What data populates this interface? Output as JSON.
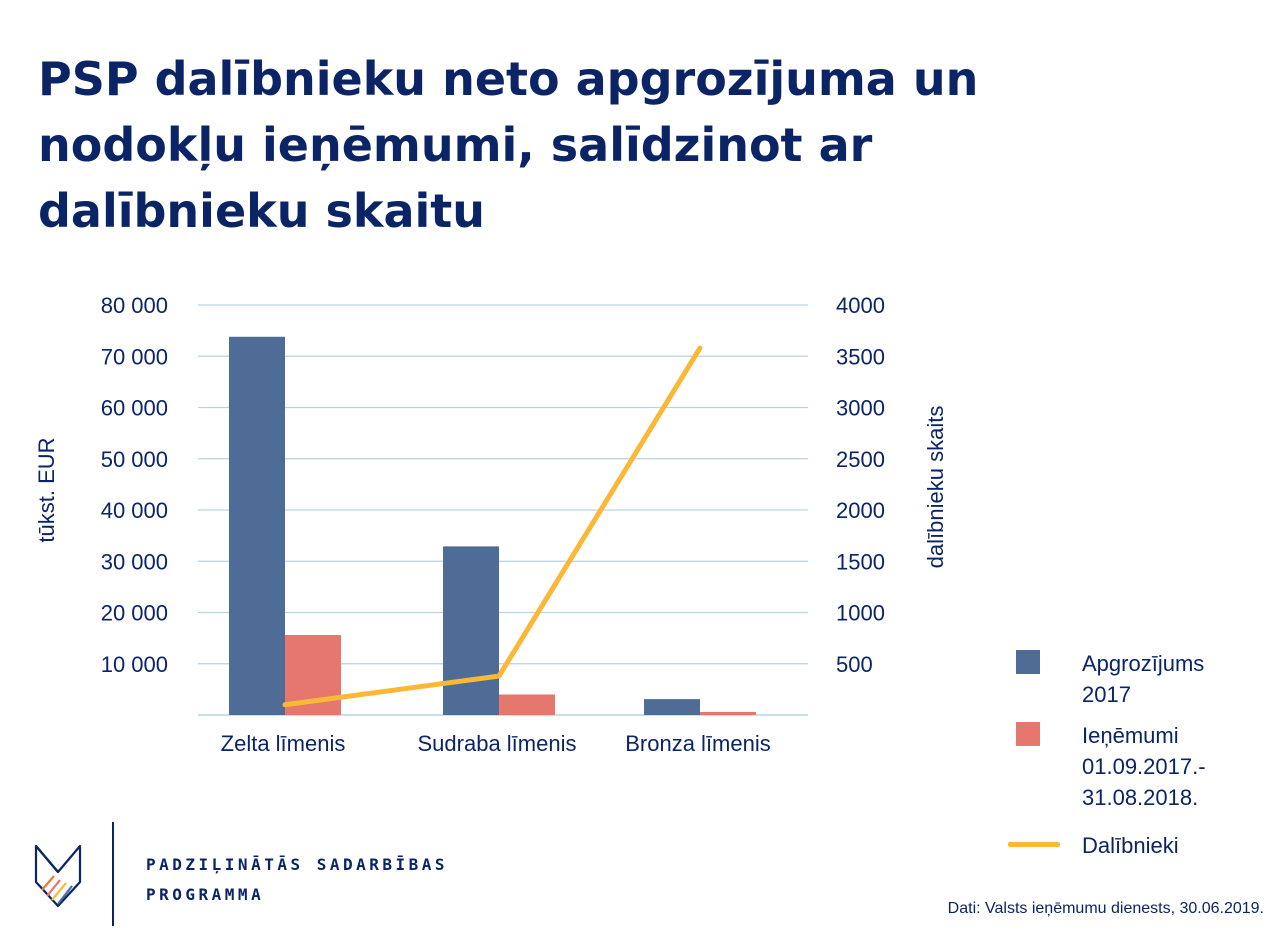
{
  "title": "PSP dalībnieku neto apgrozījuma un nodokļu ieņēmumi, salīdzinot ar dalībnieku skaitu",
  "chart_data": {
    "type": "bar",
    "categories": [
      "Zelta līmenis",
      "Sudraba līmenis",
      "Bronza līmenis"
    ],
    "series": [
      {
        "name": "Apgrozījums 2017",
        "kind": "bar",
        "axis": "left",
        "color": "#4f6c96",
        "values": [
          73800,
          32900,
          3100
        ]
      },
      {
        "name": "Ieņēmumi 01.09.2017.-31.08.2018.",
        "kind": "bar",
        "axis": "left",
        "color": "#e5776f",
        "values": [
          15600,
          4000,
          600
        ]
      },
      {
        "name": "Dalībnieki",
        "kind": "line",
        "axis": "right",
        "color": "#fbb836",
        "values": [
          100,
          380,
          3580
        ]
      }
    ],
    "ylabel": "tūkst. EUR",
    "y2label": "dalībnieku skaits",
    "ylim": [
      0,
      80000
    ],
    "y2lim": [
      0,
      4000
    ],
    "yticks": [
      {
        "value": 10000,
        "label": "10 000"
      },
      {
        "value": 20000,
        "label": "20 000"
      },
      {
        "value": 30000,
        "label": "30 000"
      },
      {
        "value": 40000,
        "label": "40 000"
      },
      {
        "value": 50000,
        "label": "50 000"
      },
      {
        "value": 60000,
        "label": "60 000"
      },
      {
        "value": 70000,
        "label": "70 000"
      },
      {
        "value": 80000,
        "label": "80 000"
      }
    ],
    "y2ticks": [
      {
        "value": 500,
        "label": "500"
      },
      {
        "value": 1000,
        "label": "1000"
      },
      {
        "value": 1500,
        "label": "1500"
      },
      {
        "value": 2000,
        "label": "2000"
      },
      {
        "value": 2500,
        "label": "2500"
      },
      {
        "value": 3000,
        "label": "3000"
      },
      {
        "value": 3500,
        "label": "3500"
      },
      {
        "value": 4000,
        "label": "4000"
      }
    ],
    "grid": true,
    "legend_position": "right",
    "gridColor": "#b9d3e3"
  },
  "legend": [
    {
      "label_lines": [
        "Apgrozījums",
        "2017"
      ],
      "color": "#4f6c96",
      "kind": "bar"
    },
    {
      "label_lines": [
        "Ieņēmumi",
        "01.09.2017.-",
        "31.08.2018."
      ],
      "color": "#e5776f",
      "kind": "bar"
    },
    {
      "label_lines": [
        "Dalībnieki"
      ],
      "color": "#fbb836",
      "kind": "line"
    }
  ],
  "logo": {
    "line1": "PADZIĻINĀTĀS SADARBĪBAS",
    "line2": "PROGRAMMA",
    "icon": "psp-logo-icon"
  },
  "source": "Dati: Valsts ieņēmumu dienests, 30.06.2019."
}
